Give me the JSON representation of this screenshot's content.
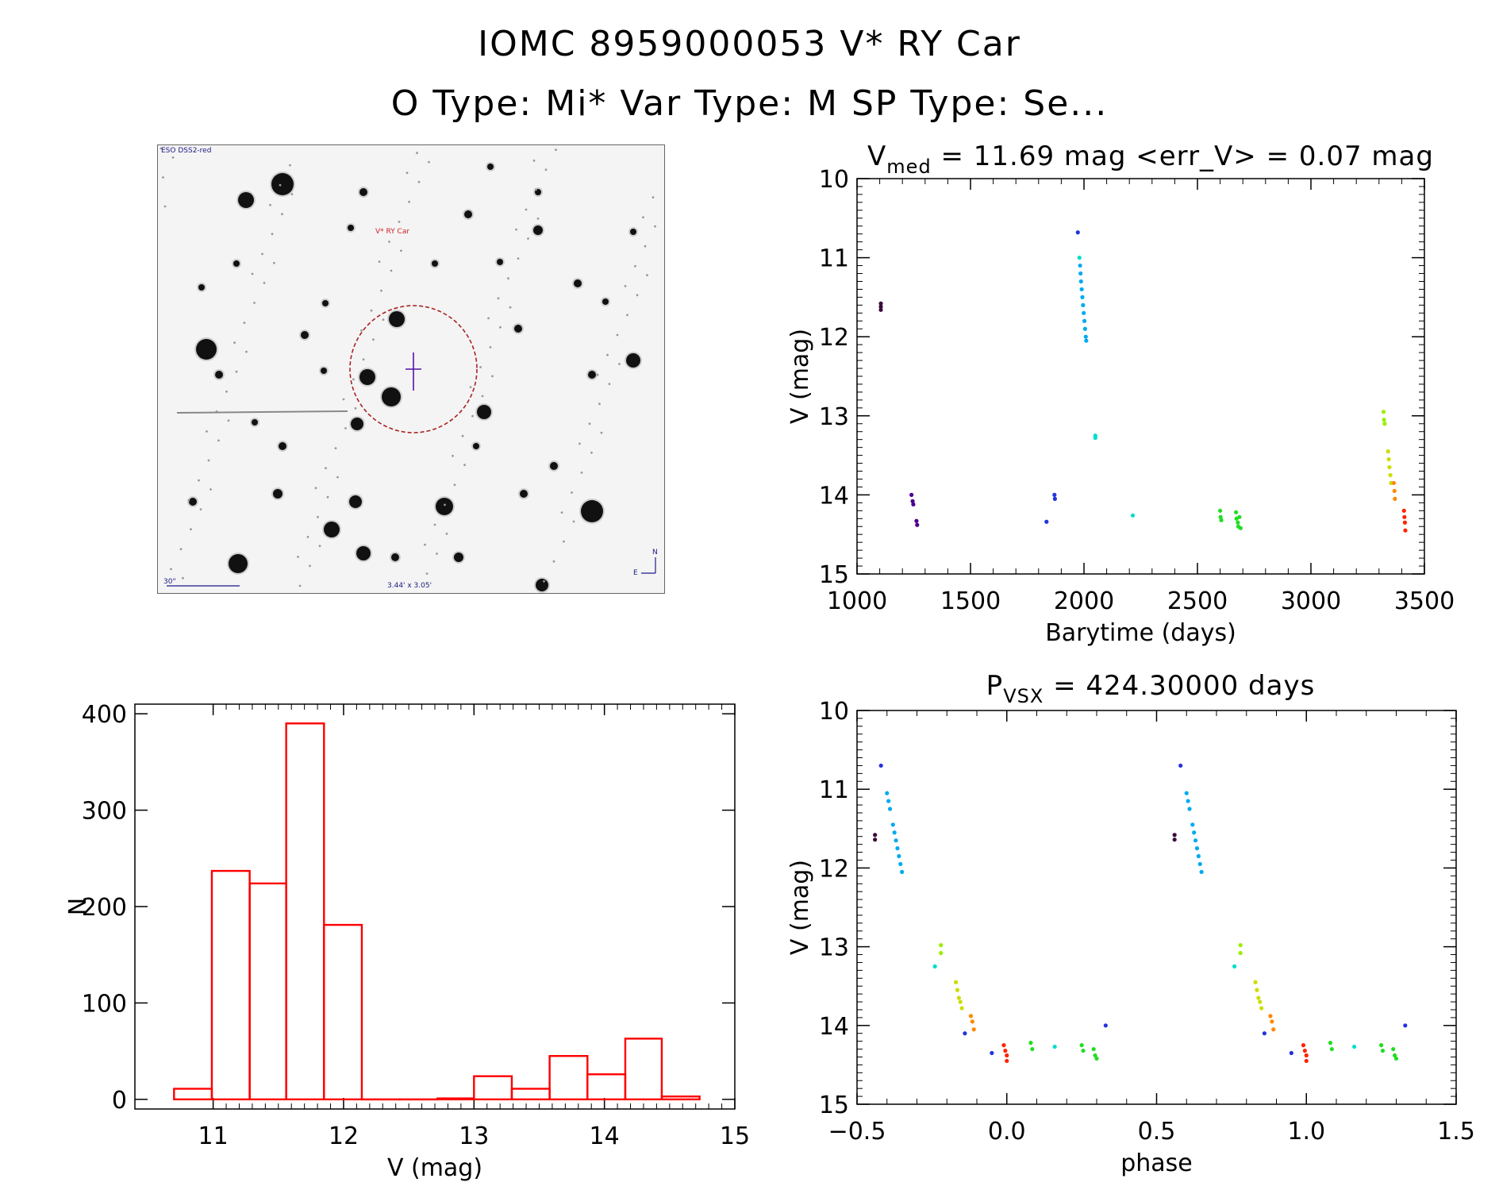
{
  "header": {
    "title": "IOMC 8959000053   V* RY Car",
    "subtitle": "O Type: Mi*  Var Type: M  SP Type: Se..."
  },
  "image_panel": {
    "survey_label": "ESO DSS2-red",
    "target_label": "V* RY Car",
    "scale_label": "30\"",
    "fov_label": "3.44' x 3.05'",
    "north_label": "N",
    "east_label": "E"
  },
  "colors": {
    "hist": "#ff0000",
    "axis": "#000000"
  },
  "chart_data": [
    {
      "id": "lightcurve",
      "type": "scatter",
      "title_parts": {
        "main": "V",
        "sub": "med",
        "rest": " = 11.69 mag <err_V> = 0.07 mag"
      },
      "xlabel": "Barytime (days)",
      "ylabel": "V (mag)",
      "xlim": [
        1000,
        3500
      ],
      "ylim": [
        15,
        10
      ],
      "xticks": [
        1000,
        1500,
        2000,
        2500,
        3000,
        3500
      ],
      "yticks": [
        10,
        11,
        12,
        13,
        14,
        15
      ],
      "groups": [
        {
          "color": "#3b0a3b",
          "points": [
            [
              1105,
              11.58
            ],
            [
              1105,
              11.62
            ],
            [
              1105,
              11.66
            ]
          ]
        },
        {
          "color": "#4b0090",
          "points": [
            [
              1240,
              14.0
            ],
            [
              1245,
              14.08
            ],
            [
              1248,
              14.12
            ],
            [
              1262,
              14.33
            ],
            [
              1265,
              14.38
            ]
          ]
        },
        {
          "color": "#2233dd",
          "points": [
            [
              1835,
              14.34
            ],
            [
              1870,
              14.0
            ],
            [
              1872,
              14.05
            ],
            [
              1973,
              10.68
            ]
          ]
        },
        {
          "color": "#00aaee",
          "points": [
            [
              1983,
              11.1
            ],
            [
              1985,
              11.2
            ],
            [
              1987,
              11.3
            ],
            [
              1990,
              11.4
            ],
            [
              1993,
              11.5
            ],
            [
              1996,
              11.6
            ],
            [
              1999,
              11.7
            ],
            [
              2002,
              11.8
            ],
            [
              2005,
              11.9
            ],
            [
              2008,
              12.0
            ],
            [
              2010,
              12.05
            ]
          ]
        },
        {
          "color": "#00ddcc",
          "points": [
            [
              1980,
              11.0
            ],
            [
              2050,
              13.25
            ],
            [
              2050,
              13.28
            ],
            [
              2215,
              14.26
            ]
          ]
        },
        {
          "color": "#22dd22",
          "points": [
            [
              2600,
              14.2
            ],
            [
              2602,
              14.28
            ],
            [
              2605,
              14.32
            ],
            [
              2670,
              14.22
            ],
            [
              2672,
              14.3
            ],
            [
              2678,
              14.35
            ],
            [
              2680,
              14.4
            ],
            [
              2685,
              14.28
            ],
            [
              2690,
              14.42
            ]
          ]
        },
        {
          "color": "#99ee00",
          "points": [
            [
              3320,
              12.95
            ],
            [
              3322,
              13.05
            ],
            [
              3325,
              13.1
            ]
          ]
        },
        {
          "color": "#ccdd00",
          "points": [
            [
              3340,
              13.45
            ],
            [
              3343,
              13.55
            ],
            [
              3346,
              13.65
            ],
            [
              3350,
              13.75
            ],
            [
              3353,
              13.85
            ]
          ]
        },
        {
          "color": "#ff8800",
          "points": [
            [
              3365,
              13.85
            ],
            [
              3368,
              13.95
            ],
            [
              3370,
              14.05
            ]
          ]
        },
        {
          "color": "#ff2200",
          "points": [
            [
              3410,
              14.2
            ],
            [
              3412,
              14.28
            ],
            [
              3414,
              14.35
            ],
            [
              3416,
              14.45
            ]
          ]
        }
      ]
    },
    {
      "id": "histogram",
      "type": "bar",
      "title": "",
      "xlabel": "V (mag)",
      "ylabel": "N",
      "xlim": [
        10.4,
        15
      ],
      "ylim": [
        -10,
        410
      ],
      "xticks": [
        11,
        12,
        13,
        14,
        15
      ],
      "yticks": [
        0,
        100,
        200,
        300,
        400
      ],
      "bins": [
        {
          "x0": 10.7,
          "x1": 10.99,
          "n": 11
        },
        {
          "x0": 10.99,
          "x1": 11.28,
          "n": 237
        },
        {
          "x0": 11.28,
          "x1": 11.56,
          "n": 224
        },
        {
          "x0": 11.56,
          "x1": 11.85,
          "n": 390
        },
        {
          "x0": 11.85,
          "x1": 12.14,
          "n": 181
        },
        {
          "x0": 12.14,
          "x1": 12.43,
          "n": 0
        },
        {
          "x0": 12.43,
          "x1": 12.72,
          "n": 0
        },
        {
          "x0": 12.72,
          "x1": 13.0,
          "n": 1
        },
        {
          "x0": 13.0,
          "x1": 13.29,
          "n": 24
        },
        {
          "x0": 13.29,
          "x1": 13.58,
          "n": 11
        },
        {
          "x0": 13.58,
          "x1": 13.87,
          "n": 45
        },
        {
          "x0": 13.87,
          "x1": 14.16,
          "n": 26
        },
        {
          "x0": 14.16,
          "x1": 14.44,
          "n": 63
        },
        {
          "x0": 14.44,
          "x1": 14.73,
          "n": 3
        }
      ]
    },
    {
      "id": "phased",
      "type": "scatter",
      "title_parts": {
        "main": "P",
        "sub": "VSX",
        "rest": " = 424.30000 days"
      },
      "xlabel": "phase",
      "ylabel": "V (mag)",
      "xlim": [
        -0.5,
        1.5
      ],
      "ylim": [
        15,
        10
      ],
      "xticks": [
        -0.5,
        0.0,
        0.5,
        1.0,
        1.5
      ],
      "xtick_labels": [
        "−0.5",
        "0.0",
        "0.5",
        "1.0",
        "1.5"
      ],
      "yticks": [
        10,
        11,
        12,
        13,
        14,
        15
      ],
      "groups": [
        {
          "color": "#3b0a3b",
          "points": [
            [
              -0.44,
              11.58
            ],
            [
              -0.44,
              11.64
            ]
          ]
        },
        {
          "color": "#2233dd",
          "points": [
            [
              -0.42,
              10.7
            ],
            [
              -0.14,
              14.1
            ],
            [
              -0.05,
              14.35
            ],
            [
              0.33,
              14.0
            ]
          ]
        },
        {
          "color": "#00aaee",
          "points": [
            [
              -0.4,
              11.05
            ],
            [
              -0.395,
              11.15
            ],
            [
              -0.39,
              11.25
            ],
            [
              -0.38,
              11.45
            ],
            [
              -0.375,
              11.55
            ],
            [
              -0.37,
              11.65
            ],
            [
              -0.365,
              11.75
            ],
            [
              -0.36,
              11.85
            ],
            [
              -0.355,
              11.95
            ],
            [
              -0.35,
              12.05
            ]
          ]
        },
        {
          "color": "#00ddcc",
          "points": [
            [
              -0.24,
              13.25
            ],
            [
              0.16,
              14.27
            ]
          ]
        },
        {
          "color": "#99ee00",
          "points": [
            [
              -0.22,
              12.98
            ],
            [
              -0.22,
              13.08
            ]
          ]
        },
        {
          "color": "#ccdd00",
          "points": [
            [
              -0.17,
              13.45
            ],
            [
              -0.165,
              13.55
            ],
            [
              -0.16,
              13.65
            ],
            [
              -0.155,
              13.7
            ],
            [
              -0.15,
              13.78
            ]
          ]
        },
        {
          "color": "#ff8800",
          "points": [
            [
              -0.12,
              13.88
            ],
            [
              -0.115,
              13.95
            ],
            [
              -0.11,
              14.05
            ]
          ]
        },
        {
          "color": "#ff2200",
          "points": [
            [
              -0.01,
              14.25
            ],
            [
              -0.005,
              14.32
            ],
            [
              0.0,
              14.38
            ],
            [
              0.0,
              14.45
            ]
          ]
        },
        {
          "color": "#22dd22",
          "points": [
            [
              0.08,
              14.22
            ],
            [
              0.085,
              14.3
            ],
            [
              0.25,
              14.25
            ],
            [
              0.255,
              14.32
            ],
            [
              0.29,
              14.3
            ],
            [
              0.295,
              14.38
            ],
            [
              0.3,
              14.42
            ]
          ]
        }
      ],
      "repeat_offset": 1.0
    }
  ]
}
